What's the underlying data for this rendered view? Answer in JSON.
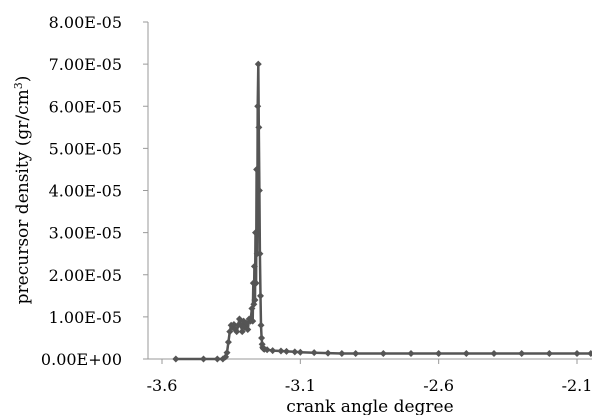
{
  "chart_data": {
    "type": "line",
    "xlabel": "crank angle degree",
    "ylabel": "precursor density (gr/cm",
    "ylabel_sup": "3",
    "ylabel_close": ")",
    "xlim": [
      -3.6,
      -2.05
    ],
    "ylim": [
      0,
      8e-05
    ],
    "grid": false,
    "x_ticks": [
      {
        "value": -3.6,
        "label": "-3.6"
      },
      {
        "value": -3.1,
        "label": "-3.1"
      },
      {
        "value": -2.6,
        "label": "-2.6"
      },
      {
        "value": -2.1,
        "label": "-2.1"
      }
    ],
    "y_ticks": [
      {
        "value": 0,
        "label": "0.00E+00"
      },
      {
        "value": 1e-05,
        "label": "1.00E-05"
      },
      {
        "value": 2e-05,
        "label": "2.00E-05"
      },
      {
        "value": 3e-05,
        "label": "3.00E-05"
      },
      {
        "value": 4e-05,
        "label": "4.00E-05"
      },
      {
        "value": 5e-05,
        "label": "5.00E-05"
      },
      {
        "value": 6e-05,
        "label": "6.00E-05"
      },
      {
        "value": 7e-05,
        "label": "7.00E-05"
      },
      {
        "value": 8e-05,
        "label": "8.00E-05"
      }
    ],
    "series": [
      {
        "color": "#555555",
        "marker": "diamond",
        "x": [
          -3.55,
          -3.45,
          -3.4,
          -3.38,
          -3.37,
          -3.365,
          -3.36,
          -3.355,
          -3.35,
          -3.345,
          -3.34,
          -3.335,
          -3.33,
          -3.325,
          -3.32,
          -3.315,
          -3.31,
          -3.305,
          -3.3,
          -3.295,
          -3.29,
          -3.285,
          -3.28,
          -3.275,
          -3.272,
          -3.27,
          -3.268,
          -3.266,
          -3.264,
          -3.262,
          -3.26,
          -3.258,
          -3.256,
          -3.254,
          -3.252,
          -3.25,
          -3.248,
          -3.246,
          -3.244,
          -3.242,
          -3.24,
          -3.238,
          -3.236,
          -3.234,
          -3.232,
          -3.23,
          -3.22,
          -3.2,
          -3.17,
          -3.15,
          -3.12,
          -3.1,
          -3.05,
          -3.0,
          -2.95,
          -2.9,
          -2.8,
          -2.7,
          -2.6,
          -2.5,
          -2.4,
          -2.3,
          -2.2,
          -2.1,
          -2.05
        ],
        "y": [
          0,
          0,
          0,
          0,
          5e-07,
          1.5e-06,
          4e-06,
          6.5e-06,
          8e-06,
          7.5e-06,
          8.2e-06,
          7e-06,
          6.5e-06,
          8e-06,
          9.5e-06,
          8e-06,
          6.5e-06,
          9e-06,
          7.5e-06,
          8.5e-06,
          7e-06,
          9.5e-06,
          9e-06,
          1.2e-05,
          9e-06,
          1.8e-05,
          1.3e-05,
          2.2e-05,
          1.4e-05,
          3e-05,
          1.8e-05,
          4.5e-05,
          2.5e-05,
          6e-05,
          7e-05,
          5.5e-05,
          4e-05,
          2.5e-05,
          1.5e-05,
          8e-06,
          5e-06,
          3.5e-06,
          2.8e-06,
          2.5e-06,
          2.4e-06,
          2.3e-06,
          2.2e-06,
          2e-06,
          1.9e-06,
          1.8e-06,
          1.7e-06,
          1.6e-06,
          1.5e-06,
          1.4e-06,
          1.3e-06,
          1.3e-06,
          1.3e-06,
          1.3e-06,
          1.3e-06,
          1.3e-06,
          1.3e-06,
          1.3e-06,
          1.3e-06,
          1.3e-06,
          1.3e-06
        ]
      }
    ]
  }
}
